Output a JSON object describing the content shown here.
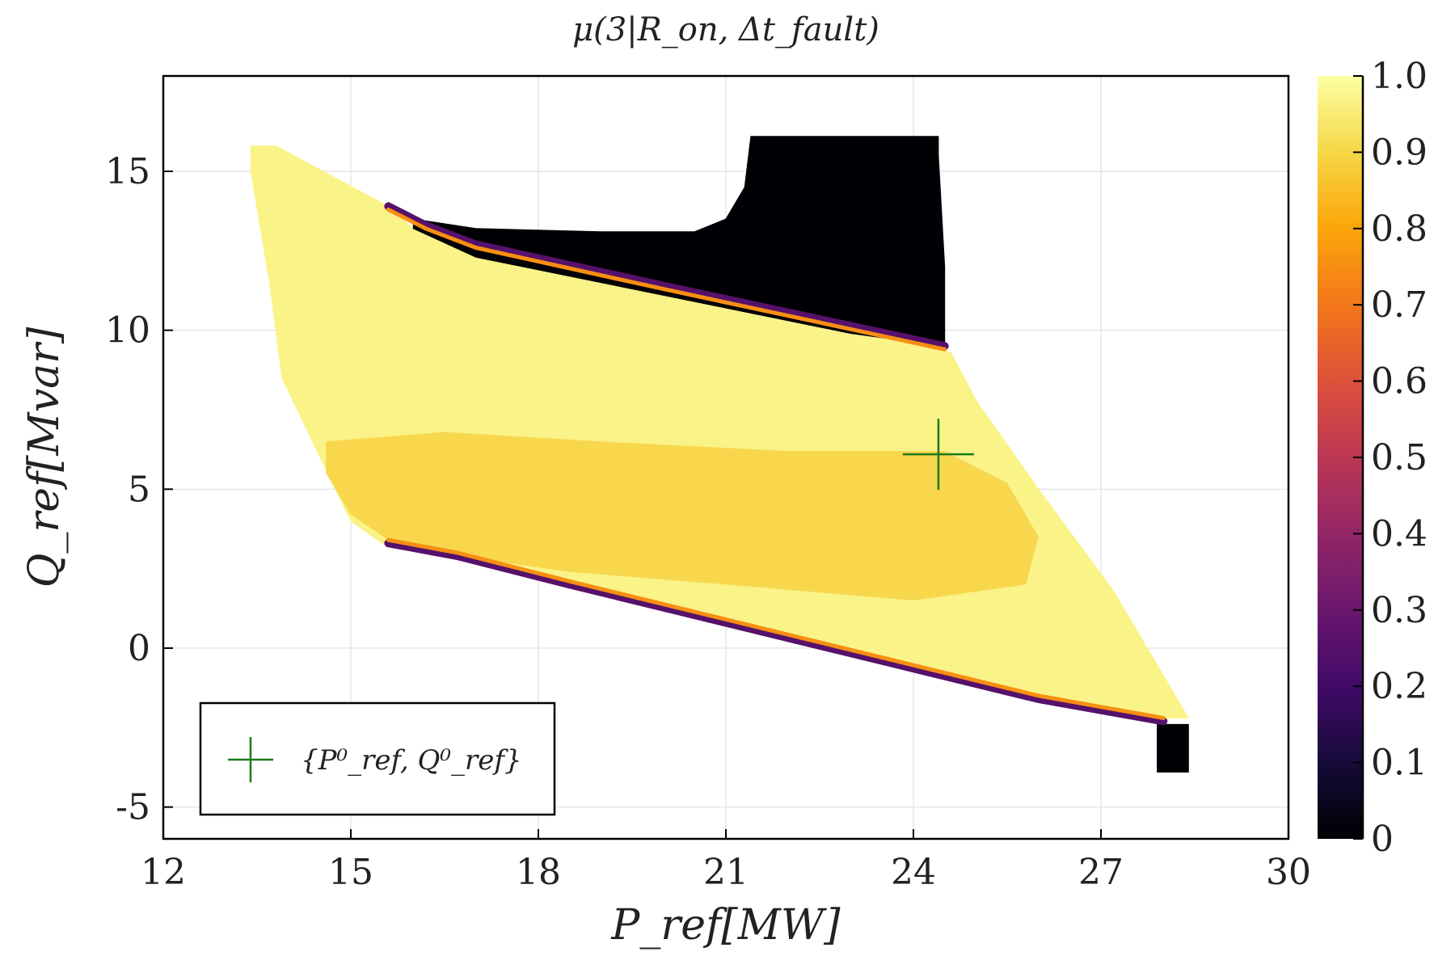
{
  "chart_data": {
    "type": "heatmap",
    "title": "μ(3|R_on, Δt_fault)",
    "xlabel": "P_ref[MW]",
    "ylabel": "Q_ref[Mvar]",
    "xlim": [
      12,
      30
    ],
    "ylim": [
      -6,
      18
    ],
    "xticks": [
      "12",
      "15",
      "18",
      "21",
      "24",
      "27",
      "30"
    ],
    "yticks": [
      "-5",
      "0",
      "5",
      "10",
      "15"
    ],
    "grid": true,
    "colorbar": {
      "colormap": "inferno",
      "range": [
        0,
        1
      ],
      "ticks": [
        "0",
        "0.1",
        "0.2",
        "0.3",
        "0.4",
        "0.5",
        "0.6",
        "0.7",
        "0.8",
        "0.9",
        "1.0"
      ]
    },
    "regions": [
      {
        "name": "feasible operating region",
        "value": 0.97,
        "polygon": [
          [
            13.4,
            15.8
          ],
          [
            13.8,
            15.8
          ],
          [
            15.6,
            13.9
          ],
          [
            16.0,
            13.2
          ],
          [
            17.0,
            12.4
          ],
          [
            20.0,
            11.2
          ],
          [
            24.4,
            9.4
          ],
          [
            24.6,
            9.3
          ],
          [
            25.0,
            7.8
          ],
          [
            26.0,
            5.0
          ],
          [
            27.2,
            1.8
          ],
          [
            28.4,
            -2.2
          ],
          [
            27.9,
            -2.2
          ],
          [
            26.0,
            -1.7
          ],
          [
            23.5,
            -0.5
          ],
          [
            21.0,
            0.7
          ],
          [
            18.5,
            2.0
          ],
          [
            16.7,
            2.8
          ],
          [
            15.5,
            3.3
          ],
          [
            15.0,
            4.0
          ],
          [
            13.9,
            8.5
          ],
          [
            13.7,
            11.5
          ],
          [
            13.4,
            15.0
          ]
        ]
      },
      {
        "name": "reduced-probability band",
        "value": 0.88,
        "polygon": [
          [
            14.6,
            6.5
          ],
          [
            16.5,
            6.8
          ],
          [
            19.0,
            6.5
          ],
          [
            22.0,
            6.2
          ],
          [
            24.5,
            6.2
          ],
          [
            25.5,
            5.2
          ],
          [
            26.0,
            3.5
          ],
          [
            25.8,
            2.0
          ],
          [
            24.0,
            1.5
          ],
          [
            21.0,
            2.0
          ],
          [
            18.5,
            2.4
          ],
          [
            16.7,
            2.9
          ],
          [
            15.6,
            3.4
          ],
          [
            15.0,
            4.2
          ],
          [
            14.6,
            5.5
          ]
        ]
      },
      {
        "name": "zero-probability region upper",
        "value": 0.0,
        "polygon": [
          [
            16.0,
            13.5
          ],
          [
            17.0,
            13.2
          ],
          [
            19.0,
            13.1
          ],
          [
            20.5,
            13.1
          ],
          [
            21.0,
            13.5
          ],
          [
            21.3,
            14.5
          ],
          [
            21.4,
            16.1
          ],
          [
            24.4,
            16.1
          ],
          [
            24.4,
            15.5
          ],
          [
            24.5,
            12.0
          ],
          [
            24.5,
            9.5
          ],
          [
            23.0,
            9.9
          ],
          [
            20.0,
            11.1
          ],
          [
            17.0,
            12.3
          ],
          [
            16.0,
            13.2
          ]
        ]
      },
      {
        "name": "zero-probability region lower-right",
        "value": 0.0,
        "polygon": [
          [
            27.9,
            -2.4
          ],
          [
            28.4,
            -2.4
          ],
          [
            28.4,
            -3.9
          ],
          [
            27.9,
            -3.9
          ]
        ]
      }
    ],
    "edges": [
      {
        "name": "upper boundary edge",
        "points": [
          [
            15.6,
            13.9
          ],
          [
            16.2,
            13.3
          ],
          [
            17.0,
            12.7
          ],
          [
            20.0,
            11.4
          ],
          [
            24.5,
            9.5
          ]
        ]
      },
      {
        "name": "lower boundary edge",
        "points": [
          [
            15.6,
            3.3
          ],
          [
            16.7,
            2.9
          ],
          [
            18.5,
            2.0
          ],
          [
            21.0,
            0.8
          ],
          [
            23.5,
            -0.4
          ],
          [
            26.0,
            -1.6
          ],
          [
            28.0,
            -2.3
          ]
        ]
      }
    ],
    "markers": [
      {
        "name": "{P⁰_ref, Q⁰_ref}",
        "x": 24.4,
        "y": 6.1,
        "symbol": "cross",
        "color": "#1a7a1a"
      }
    ],
    "legend": {
      "position": "bottom-left",
      "label": "{P⁰_ref, Q⁰_ref}"
    }
  }
}
